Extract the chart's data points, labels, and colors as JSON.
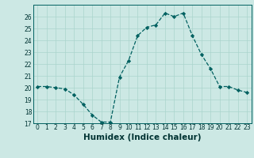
{
  "x": [
    0,
    1,
    2,
    3,
    4,
    5,
    6,
    7,
    8,
    9,
    10,
    11,
    12,
    13,
    14,
    15,
    16,
    17,
    18,
    19,
    20,
    21,
    22,
    23
  ],
  "y": [
    20.1,
    20.1,
    20.0,
    19.9,
    19.4,
    18.6,
    17.7,
    17.1,
    17.1,
    20.9,
    22.3,
    24.4,
    25.1,
    25.3,
    26.3,
    26.0,
    26.3,
    24.4,
    22.8,
    21.6,
    20.1,
    20.1,
    19.8,
    19.6
  ],
  "xlabel": "Humidex (Indice chaleur)",
  "bg_color": "#cce8e4",
  "line_color": "#006060",
  "marker_color": "#006060",
  "grid_major_color": "#aad4cc",
  "grid_minor_color": "#c4e4e0",
  "ylim": [
    17,
    27
  ],
  "xlim": [
    -0.5,
    23.5
  ],
  "yticks": [
    17,
    18,
    19,
    20,
    21,
    22,
    23,
    24,
    25,
    26
  ],
  "xticks": [
    0,
    1,
    2,
    3,
    4,
    5,
    6,
    7,
    8,
    9,
    10,
    11,
    12,
    13,
    14,
    15,
    16,
    17,
    18,
    19,
    20,
    21,
    22,
    23
  ],
  "tick_fontsize": 5.5,
  "xlabel_fontsize": 7.5
}
